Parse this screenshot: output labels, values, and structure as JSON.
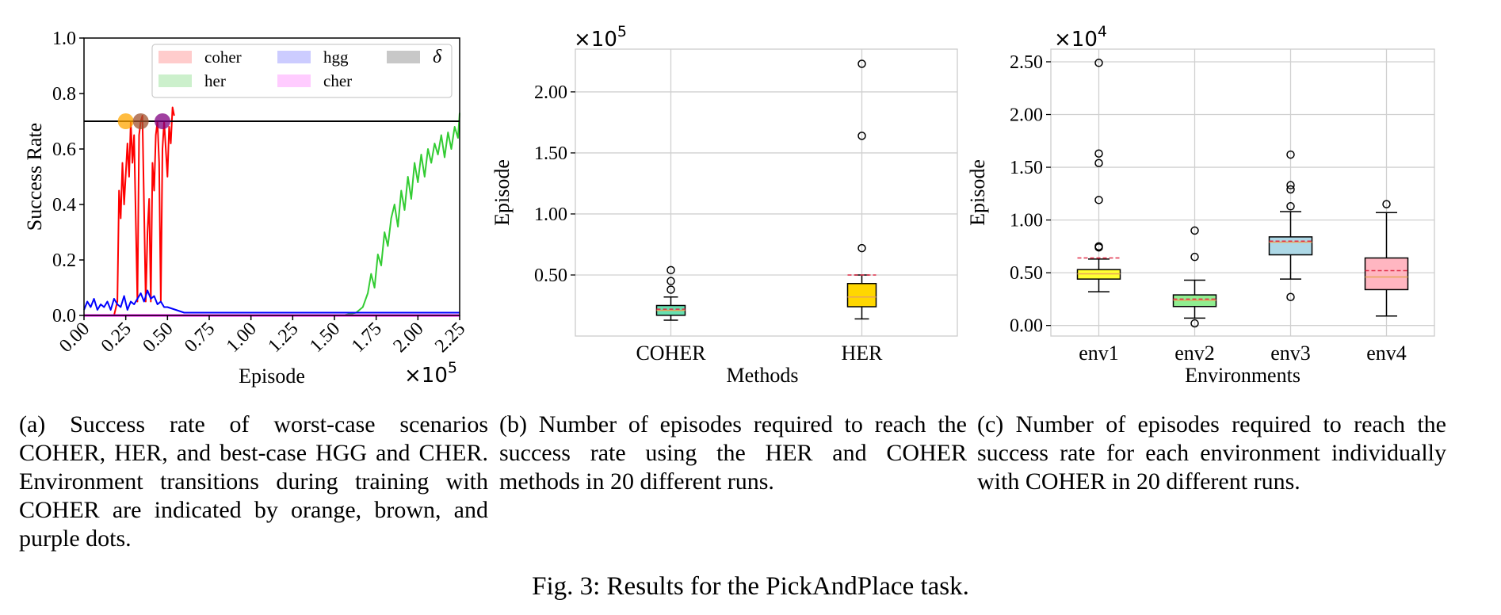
{
  "figure": {
    "caption": "Fig. 3: Results for the PickAndPlace task.",
    "subcaptions": {
      "a": "(a) Success rate of worst-case scenarios COHER, HER, and best-case HGG and CHER. Environment transitions during training with COHER are indicated by orange, brown, and purple dots.",
      "b": "(b) Number of episodes required to reach the success rate using the HER and COHER methods in 20 different runs.",
      "c": "(c) Number of episodes required to reach the success rate for each environment individually with COHER in 20 different runs."
    }
  },
  "chart_data": [
    {
      "id": "a",
      "type": "line",
      "title": "",
      "xlabel": "Episode",
      "ylabel": "Success Rate",
      "x_exponent_label": "×10^5",
      "xlim": [
        0,
        2.25
      ],
      "ylim": [
        0,
        1.0
      ],
      "x_ticks": [
        "0.00",
        "0.25",
        "0.50",
        "0.75",
        "1.00",
        "1.25",
        "1.50",
        "1.75",
        "2.00",
        "2.25"
      ],
      "y_ticks": [
        "0.0",
        "0.2",
        "0.4",
        "0.6",
        "0.8",
        "1.0"
      ],
      "grid": false,
      "legend": {
        "position": "top-right",
        "entries": [
          {
            "label": "coher",
            "color": "#ffcccc"
          },
          {
            "label": "hgg",
            "color": "#ccccff"
          },
          {
            "label": "δ",
            "color": "#c8c8c8"
          },
          {
            "label": "her",
            "color": "#ccf0cc"
          },
          {
            "label": "cher",
            "color": "#ffccff"
          }
        ]
      },
      "threshold": {
        "name": "δ",
        "y": 0.7,
        "color": "#000000"
      },
      "series": [
        {
          "name": "coher",
          "color": "#ff0000",
          "x": [
            0,
            0.18,
            0.2,
            0.21,
            0.22,
            0.23,
            0.24,
            0.26,
            0.27,
            0.28,
            0.29,
            0.3,
            0.32,
            0.33,
            0.34,
            0.35,
            0.37,
            0.38,
            0.39,
            0.4,
            0.41,
            0.42,
            0.43,
            0.44,
            0.45,
            0.46,
            0.47,
            0.48,
            0.5,
            0.51,
            0.52,
            0.53,
            0.54
          ],
          "y": [
            0.0,
            0.0,
            0.05,
            0.45,
            0.35,
            0.55,
            0.4,
            0.62,
            0.5,
            0.7,
            0.55,
            0.65,
            0.05,
            0.65,
            0.7,
            0.72,
            0.05,
            0.3,
            0.42,
            0.05,
            0.55,
            0.45,
            0.65,
            0.7,
            0.55,
            0.05,
            0.6,
            0.7,
            0.5,
            0.68,
            0.62,
            0.75,
            0.72
          ]
        },
        {
          "name": "her",
          "color": "#33cc33",
          "x": [
            1.55,
            1.63,
            1.67,
            1.7,
            1.72,
            1.74,
            1.76,
            1.78,
            1.8,
            1.82,
            1.84,
            1.86,
            1.88,
            1.9,
            1.92,
            1.94,
            1.96,
            1.98,
            2.0,
            2.02,
            2.04,
            2.06,
            2.08,
            2.1,
            2.12,
            2.14,
            2.16,
            2.18,
            2.2,
            2.22,
            2.24,
            2.25
          ],
          "y": [
            0.0,
            0.01,
            0.03,
            0.08,
            0.15,
            0.1,
            0.22,
            0.18,
            0.3,
            0.25,
            0.35,
            0.4,
            0.32,
            0.45,
            0.38,
            0.5,
            0.42,
            0.55,
            0.48,
            0.58,
            0.5,
            0.6,
            0.55,
            0.62,
            0.58,
            0.65,
            0.57,
            0.66,
            0.6,
            0.68,
            0.64,
            0.73
          ]
        },
        {
          "name": "hgg",
          "color": "#0000ff",
          "x": [
            0,
            0.02,
            0.04,
            0.06,
            0.08,
            0.1,
            0.12,
            0.14,
            0.16,
            0.18,
            0.2,
            0.22,
            0.24,
            0.26,
            0.28,
            0.3,
            0.32,
            0.34,
            0.36,
            0.38,
            0.4,
            0.42,
            0.44,
            0.46,
            0.48,
            0.5,
            0.55,
            0.6,
            0.7,
            0.8,
            0.9,
            1.0,
            1.2,
            1.4,
            1.6,
            1.8,
            2.0,
            2.25
          ],
          "y": [
            0.02,
            0.05,
            0.03,
            0.06,
            0.02,
            0.04,
            0.03,
            0.05,
            0.02,
            0.06,
            0.04,
            0.03,
            0.07,
            0.02,
            0.05,
            0.04,
            0.06,
            0.08,
            0.05,
            0.09,
            0.06,
            0.07,
            0.04,
            0.05,
            0.03,
            0.03,
            0.02,
            0.01,
            0.01,
            0.01,
            0.01,
            0.01,
            0.01,
            0.01,
            0.01,
            0.01,
            0.01,
            0.01
          ]
        },
        {
          "name": "cher",
          "color": "#ff00ff",
          "x": [
            0,
            2.25
          ],
          "y": [
            0.0,
            0.0
          ]
        }
      ],
      "transitions": [
        {
          "x": 0.25,
          "y": 0.7,
          "color": "#ffa500"
        },
        {
          "x": 0.34,
          "y": 0.7,
          "color": "#a0522d"
        },
        {
          "x": 0.47,
          "y": 0.7,
          "color": "#800080"
        }
      ]
    },
    {
      "id": "b",
      "type": "box",
      "title": "",
      "xlabel": "Methods",
      "ylabel": "Episode",
      "y_exponent_label": "×10^5",
      "ylim": [
        0.0,
        2.35
      ],
      "y_ticks": [
        "0.50",
        "1.00",
        "1.50",
        "2.00"
      ],
      "grid": true,
      "categories": [
        "COHER",
        "HER"
      ],
      "boxes": [
        {
          "name": "COHER",
          "color": "#66e0b0",
          "whisker_low": 0.13,
          "q1": 0.17,
          "median": 0.21,
          "q3": 0.25,
          "whisker_high": 0.32,
          "mean": 0.22,
          "outliers": [
            0.38,
            0.45,
            0.54
          ]
        },
        {
          "name": "HER",
          "color": "#ffd700",
          "whisker_low": 0.14,
          "q1": 0.24,
          "median": 0.32,
          "q3": 0.43,
          "whisker_high": 0.5,
          "mean": 0.5,
          "outliers": [
            0.72,
            1.64,
            2.23
          ]
        }
      ]
    },
    {
      "id": "c",
      "type": "box",
      "title": "",
      "xlabel": "Environments",
      "ylabel": "Episode",
      "y_exponent_label": "×10^4",
      "ylim": [
        -0.1,
        2.62
      ],
      "y_ticks": [
        "0.00",
        "0.50",
        "1.00",
        "1.50",
        "2.00",
        "2.50"
      ],
      "grid": true,
      "categories": [
        "env1",
        "env2",
        "env3",
        "env4"
      ],
      "boxes": [
        {
          "name": "env1",
          "color": "#ffff33",
          "whisker_low": 0.32,
          "q1": 0.44,
          "median": 0.49,
          "q3": 0.53,
          "whisker_high": 0.63,
          "mean": 0.64,
          "outliers": [
            0.74,
            0.75,
            1.19,
            1.54,
            1.63,
            2.49
          ]
        },
        {
          "name": "env2",
          "color": "#90ee90",
          "whisker_low": 0.07,
          "q1": 0.18,
          "median": 0.24,
          "q3": 0.29,
          "whisker_high": 0.43,
          "mean": 0.25,
          "outliers": [
            0.02,
            0.65,
            0.9
          ]
        },
        {
          "name": "env3",
          "color": "#add8e6",
          "whisker_low": 0.44,
          "q1": 0.67,
          "median": 0.79,
          "q3": 0.84,
          "whisker_high": 1.08,
          "mean": 0.8,
          "outliers": [
            0.27,
            1.13,
            1.29,
            1.33,
            1.62
          ]
        },
        {
          "name": "env4",
          "color": "#ffb6c1",
          "whisker_low": 0.09,
          "q1": 0.34,
          "median": 0.46,
          "q3": 0.64,
          "whisker_high": 1.07,
          "mean": 0.52,
          "outliers": [
            1.15
          ]
        }
      ]
    }
  ]
}
